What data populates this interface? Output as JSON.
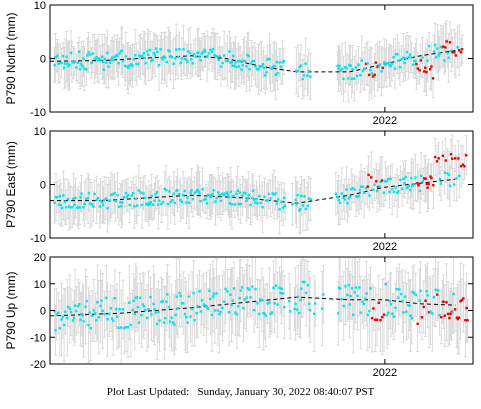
{
  "footer": {
    "label": "Plot Last Updated:",
    "value": "Sunday, January 30, 2022 08:40:07 PST"
  },
  "colors": {
    "observed": "#00e5ee",
    "recent": "#ee0000",
    "error_bar": "#d3d3d3",
    "model": "#000000"
  },
  "chart_data": [
    {
      "type": "scatter",
      "ylabel": "P790 North (mm)",
      "ylim": [
        -10,
        10
      ],
      "yticks": [
        -10,
        0,
        10
      ],
      "xlim": [
        2021.05,
        2022.25
      ],
      "xticks": [
        2022
      ],
      "xtick_labels": [
        "2022"
      ],
      "seed": 11,
      "n_points": 310,
      "error": 4,
      "model": [
        [
          2021.05,
          -0.5
        ],
        [
          2021.2,
          -0.4
        ],
        [
          2021.3,
          0
        ],
        [
          2021.45,
          0.5
        ],
        [
          2021.55,
          0
        ],
        [
          2021.65,
          -1.5
        ],
        [
          2021.75,
          -2.5
        ],
        [
          2021.9,
          -2.5
        ],
        [
          2022.0,
          -1
        ],
        [
          2022.1,
          0.5
        ],
        [
          2022.2,
          1.5
        ]
      ],
      "noise": 1.7,
      "gaps": [
        [
          2021.715,
          2021.745
        ],
        [
          2021.79,
          2021.865
        ]
      ],
      "recent_start": 2022.085,
      "recent_ranges": [
        [
          2021.94,
          2021.995
        ],
        [
          2022.15,
          2022.23
        ]
      ],
      "recent_value": -2,
      "recent_noise": 1.8,
      "recent_value_late": 1.5
    },
    {
      "type": "scatter",
      "ylabel": "P790 East (mm)",
      "ylim": [
        -10,
        10
      ],
      "yticks": [
        -10,
        0,
        10
      ],
      "xlim": [
        2021.05,
        2022.25
      ],
      "xticks": [
        2022
      ],
      "xtick_labels": [
        "2022"
      ],
      "seed": 23,
      "n_points": 300,
      "error": 4,
      "model": [
        [
          2021.05,
          -3
        ],
        [
          2021.2,
          -3
        ],
        [
          2021.45,
          -2
        ],
        [
          2021.6,
          -2.5
        ],
        [
          2021.75,
          -3.5
        ],
        [
          2021.9,
          -2
        ],
        [
          2022.0,
          -0.5
        ],
        [
          2022.2,
          1
        ]
      ],
      "noise": 1.5,
      "gaps": [
        [
          2021.715,
          2021.745
        ],
        [
          2021.79,
          2021.865
        ]
      ],
      "recent_start": 2022.085,
      "recent_ranges": [
        [
          2021.95,
          2022.0
        ],
        [
          2022.17,
          2022.24
        ]
      ],
      "recent_value": 0.5,
      "recent_noise": 1.3,
      "recent_value_late": 4.5
    },
    {
      "type": "scatter",
      "ylabel": "P790 Up (mm)",
      "ylim": [
        -20,
        20
      ],
      "yticks": [
        -20,
        -10,
        0,
        10,
        20
      ],
      "xlim": [
        2021.05,
        2022.25
      ],
      "xticks": [
        2022
      ],
      "xtick_labels": [
        "2022"
      ],
      "seed": 37,
      "n_points": 300,
      "error": 12,
      "model": [
        [
          2021.05,
          -2
        ],
        [
          2021.25,
          -1
        ],
        [
          2021.45,
          1
        ],
        [
          2021.6,
          3
        ],
        [
          2021.75,
          5
        ],
        [
          2021.9,
          4
        ],
        [
          2022.0,
          4
        ],
        [
          2022.1,
          2.5
        ],
        [
          2022.2,
          2
        ]
      ],
      "noise": 6,
      "gaps": [
        [
          2021.715,
          2021.745
        ],
        [
          2021.79,
          2021.865
        ]
      ],
      "recent_start": 2022.09,
      "recent_ranges": [
        [
          2021.96,
          2022.0
        ],
        [
          2022.15,
          2022.24
        ]
      ],
      "recent_value": 0,
      "recent_noise": 5,
      "recent_value_late": 1
    }
  ]
}
